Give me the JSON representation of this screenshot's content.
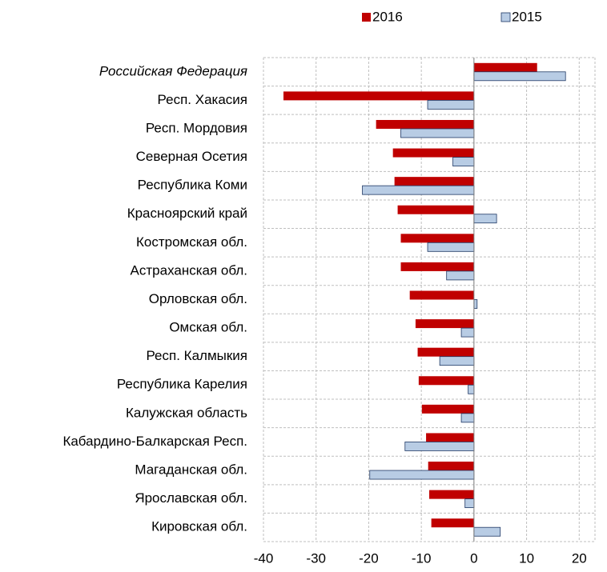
{
  "chart_data": {
    "type": "barh",
    "categories": [
      "Российская Федерация",
      "Респ. Хакасия",
      "Респ. Мордовия",
      "Северная Осетия",
      "Республика Коми",
      "Красноярский край",
      "Костромская обл.",
      "Астраханская обл.",
      "Орловская обл.",
      "Омская обл.",
      "Респ. Калмыкия",
      "Республика Карелия",
      "Калужская область",
      "Кабардино-Балкарская Респ.",
      "Магаданская обл.",
      "Ярославская обл.",
      "Кировская обл."
    ],
    "series": [
      {
        "name": "2016",
        "color": "#c00000",
        "values": [
          12,
          -36.2,
          -18.6,
          -15.4,
          -15.1,
          -14.5,
          -13.9,
          -13.9,
          -12.2,
          -11.1,
          -10.7,
          -10.5,
          -9.9,
          -9.1,
          -8.7,
          -8.5,
          -8.1
        ]
      },
      {
        "name": "2015",
        "color": "#b8cce4",
        "values": [
          17.4,
          -8.8,
          -13.9,
          -4.0,
          -21.2,
          4.3,
          -8.8,
          -5.2,
          0.6,
          -2.4,
          -6.5,
          -1.1,
          -2.4,
          -13.1,
          -19.8,
          -1.7,
          5.0
        ]
      }
    ],
    "xlim": [
      -40,
      23
    ],
    "xticks": [
      -40,
      -30,
      -20,
      -10,
      0,
      10,
      20
    ],
    "grid": true,
    "legend": "top"
  }
}
